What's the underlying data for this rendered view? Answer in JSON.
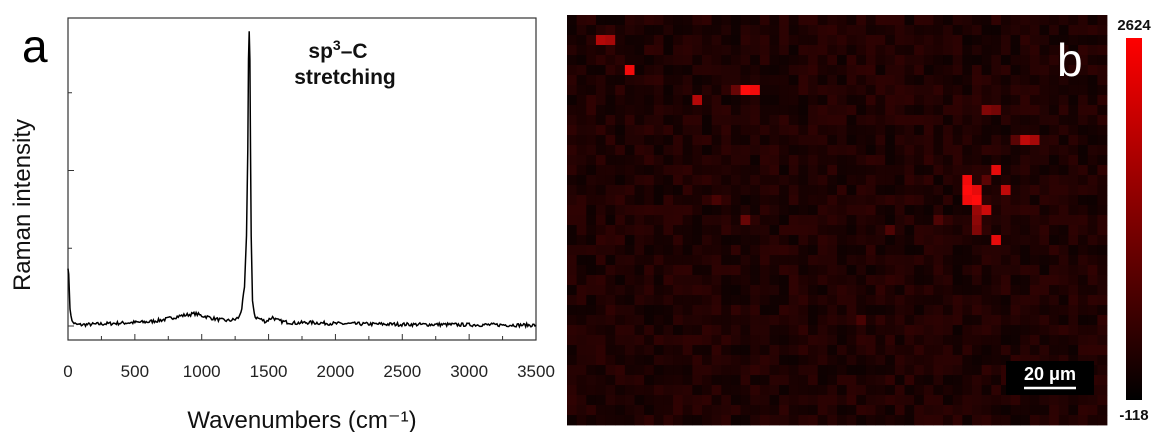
{
  "chart_data": [
    {
      "type": "line",
      "panel_label": "a",
      "xlabel": "Wavenumbers (cm⁻¹)",
      "ylabel": "Raman intensity",
      "xlim": [
        0,
        3500
      ],
      "xticks": [
        0,
        500,
        1000,
        1500,
        2000,
        2500,
        3000,
        3500
      ],
      "y_tick_labels": false,
      "annotation": {
        "line1_base": "sp",
        "line1_sup": "3",
        "line1_rest": "–C",
        "line2": "stretching"
      },
      "series": [
        {
          "x": [
            0,
            5,
            15,
            30,
            60,
            100,
            200,
            300,
            400,
            500,
            600,
            700,
            800,
            850,
            900,
            950,
            1000,
            1050,
            1100,
            1150,
            1200,
            1250,
            1280,
            1300,
            1320,
            1335,
            1345,
            1350,
            1355,
            1360,
            1365,
            1370,
            1380,
            1400,
            1430,
            1480,
            1530,
            1560,
            1600,
            1700,
            1800,
            1900,
            2000,
            2200,
            2400,
            2600,
            2800,
            3000,
            3200,
            3400,
            3500
          ],
          "y": [
            0.2,
            0.17,
            0.06,
            0.015,
            0.005,
            0.004,
            0.006,
            0.008,
            0.01,
            0.012,
            0.014,
            0.02,
            0.03,
            0.035,
            0.038,
            0.042,
            0.035,
            0.03,
            0.024,
            0.02,
            0.018,
            0.022,
            0.03,
            0.06,
            0.13,
            0.3,
            0.6,
            0.9,
            1.0,
            0.9,
            0.6,
            0.3,
            0.08,
            0.03,
            0.025,
            0.015,
            0.03,
            0.02,
            0.015,
            0.01,
            0.012,
            0.01,
            0.008,
            0.007,
            0.006,
            0.005,
            0.005,
            0.004,
            0.004,
            0.003,
            0.003
          ]
        }
      ]
    },
    {
      "type": "heatmap",
      "panel_label": "b",
      "colormap": [
        "#000000",
        "#ff0000"
      ],
      "colorbar_max": "2624",
      "colorbar_min": "-118",
      "scalebar_label": "20 μm",
      "grid_cols": 56,
      "grid_rows": 41,
      "background_level": 0.15,
      "hotspots": [
        {
          "col": 3,
          "row": 2,
          "v": 0.7
        },
        {
          "col": 4,
          "row": 2,
          "v": 0.65
        },
        {
          "col": 6,
          "row": 5,
          "v": 0.95
        },
        {
          "col": 13,
          "row": 8,
          "v": 0.7
        },
        {
          "col": 18,
          "row": 7,
          "v": 1.0
        },
        {
          "col": 19,
          "row": 7,
          "v": 0.95
        },
        {
          "col": 17,
          "row": 7,
          "v": 0.4
        },
        {
          "col": 43,
          "row": 9,
          "v": 0.5
        },
        {
          "col": 44,
          "row": 9,
          "v": 0.45
        },
        {
          "col": 47,
          "row": 12,
          "v": 0.75
        },
        {
          "col": 48,
          "row": 12,
          "v": 0.65
        },
        {
          "col": 46,
          "row": 12,
          "v": 0.35
        },
        {
          "col": 44,
          "row": 15,
          "v": 0.9
        },
        {
          "col": 41,
          "row": 16,
          "v": 0.95
        },
        {
          "col": 41,
          "row": 17,
          "v": 1.0
        },
        {
          "col": 42,
          "row": 17,
          "v": 0.9
        },
        {
          "col": 41,
          "row": 18,
          "v": 0.95
        },
        {
          "col": 42,
          "row": 18,
          "v": 1.0
        },
        {
          "col": 42,
          "row": 19,
          "v": 0.6
        },
        {
          "col": 43,
          "row": 19,
          "v": 0.8
        },
        {
          "col": 42,
          "row": 20,
          "v": 0.55
        },
        {
          "col": 42,
          "row": 21,
          "v": 0.5
        },
        {
          "col": 43,
          "row": 16,
          "v": 0.35
        },
        {
          "col": 45,
          "row": 17,
          "v": 0.75
        },
        {
          "col": 44,
          "row": 22,
          "v": 0.9
        },
        {
          "col": 18,
          "row": 20,
          "v": 0.4
        },
        {
          "col": 33,
          "row": 21,
          "v": 0.3
        },
        {
          "col": 38,
          "row": 20,
          "v": 0.3
        },
        {
          "col": 15,
          "row": 18,
          "v": 0.28
        },
        {
          "col": 30,
          "row": 30,
          "v": 0.28
        }
      ]
    }
  ]
}
